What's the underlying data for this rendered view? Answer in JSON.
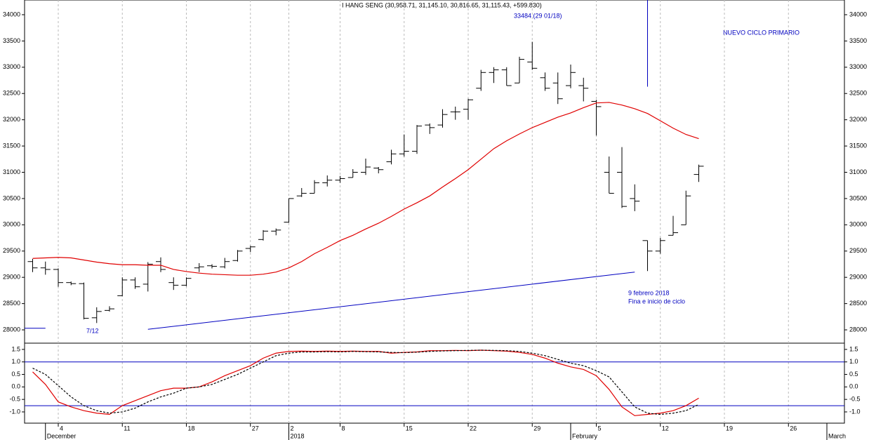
{
  "chart_data": [
    {
      "type": "ohlc",
      "title": "I HANG SENG (30,958.71, 31,145.10, 30,816.65, 31,115.43, +599.830)",
      "categories": [
        null,
        null,
        "4",
        null,
        null,
        null,
        null,
        "11",
        null,
        null,
        null,
        null,
        "18",
        null,
        null,
        null,
        null,
        "27",
        null,
        null,
        "2",
        null,
        null,
        null,
        "8",
        null,
        null,
        null,
        null,
        "15",
        null,
        null,
        null,
        null,
        "22",
        null,
        null,
        null,
        null,
        "29",
        null,
        null,
        null,
        null,
        "5",
        null,
        null,
        null,
        null,
        "12",
        null,
        null,
        null,
        null,
        "19",
        null,
        null,
        null,
        null,
        "26",
        null,
        null,
        null,
        null
      ],
      "month_labels": [
        null,
        "December",
        null,
        null,
        null,
        null,
        null,
        null,
        null,
        null,
        null,
        null,
        null,
        null,
        null,
        null,
        null,
        null,
        null,
        null,
        "2018",
        null,
        null,
        null,
        null,
        null,
        null,
        null,
        null,
        null,
        null,
        null,
        null,
        null,
        null,
        null,
        null,
        null,
        null,
        null,
        null,
        null,
        "February",
        null,
        null,
        null,
        null,
        null,
        null,
        null,
        null,
        null,
        null,
        null,
        null,
        null,
        null,
        null,
        null,
        null,
        null,
        null,
        "March",
        null
      ],
      "series": [
        {
          "color": "#000000",
          "open": [
            29300,
            29180,
            29150,
            28900,
            28880,
            28230,
            28370,
            28650,
            28950,
            28870,
            29300,
            28900,
            28850,
            29180,
            29220,
            29200,
            29320,
            29550,
            29720,
            29880,
            30050,
            30550,
            30600,
            30800,
            30850,
            30900,
            31000,
            31080,
            31200,
            31350,
            31400,
            31900,
            31900,
            32150,
            32200,
            32600,
            32900,
            32950,
            32700,
            33100,
            32800,
            32700,
            32650,
            32650,
            32350,
            31000,
            31000,
            30500,
            29700,
            29500,
            29800,
            30000,
            30958.71,
            null,
            null,
            null,
            null,
            null,
            null,
            null,
            null,
            null,
            null,
            null
          ],
          "high": [
            29350,
            29300,
            29170,
            28920,
            28900,
            28430,
            28450,
            29000,
            29000,
            29290,
            29380,
            29000,
            29000,
            29270,
            29250,
            29370,
            29520,
            29600,
            29900,
            29930,
            30500,
            30700,
            30850,
            30940,
            30930,
            31060,
            31260,
            31100,
            31430,
            31720,
            31900,
            31930,
            32200,
            32250,
            32400,
            32950,
            33000,
            33000,
            33200,
            33484,
            32900,
            32900,
            33050,
            32800,
            32380,
            31300,
            31480,
            30770,
            29700,
            29750,
            30170,
            30650,
            31145.1,
            null,
            null,
            null,
            null,
            null,
            null,
            null,
            null,
            null,
            null,
            null
          ],
          "low": [
            29100,
            29050,
            28820,
            28850,
            28200,
            28130,
            28350,
            28640,
            28780,
            28730,
            29100,
            28760,
            28830,
            29100,
            29170,
            29170,
            29300,
            29480,
            29700,
            29800,
            30040,
            30530,
            30600,
            30730,
            30800,
            30900,
            30950,
            30980,
            31150,
            31300,
            31350,
            31730,
            31850,
            32000,
            32000,
            32550,
            32700,
            32650,
            32700,
            32950,
            32550,
            32300,
            32600,
            32350,
            31700,
            30600,
            30320,
            30260,
            29120,
            29450,
            29800,
            30000,
            30816.65,
            null,
            null,
            null,
            null,
            null,
            null,
            null,
            null,
            null,
            null,
            null
          ],
          "close": [
            29180,
            29150,
            28900,
            28880,
            28220,
            28350,
            28400,
            28950,
            28820,
            29250,
            29150,
            28850,
            28980,
            29200,
            29210,
            29300,
            29500,
            29580,
            29880,
            29900,
            30500,
            30600,
            30800,
            30850,
            30880,
            31000,
            31100,
            31050,
            31350,
            31400,
            31880,
            31850,
            32100,
            32150,
            32380,
            32900,
            32950,
            32650,
            33150,
            32980,
            32600,
            32400,
            32900,
            32600,
            32250,
            30600,
            30350,
            30450,
            29500,
            29700,
            29850,
            30550,
            31115.43,
            null,
            null,
            null,
            null,
            null,
            null,
            null,
            null,
            null,
            null,
            null
          ]
        },
        {
          "color": "#e00000",
          "values": [
            29360,
            29370,
            29380,
            29370,
            29330,
            29290,
            29260,
            29240,
            29240,
            29230,
            29230,
            29150,
            29110,
            29080,
            29060,
            29050,
            29040,
            29040,
            29060,
            29100,
            29180,
            29300,
            29450,
            29570,
            29700,
            29800,
            29920,
            30030,
            30160,
            30300,
            30420,
            30550,
            30720,
            30880,
            31050,
            31250,
            31450,
            31600,
            31730,
            31850,
            31950,
            32050,
            32130,
            32230,
            32320,
            32330,
            32280,
            32210,
            32120,
            31980,
            31840,
            31720,
            31640,
            null,
            null,
            null,
            null,
            null,
            null,
            null,
            null,
            null,
            null,
            null
          ]
        }
      ],
      "ylim": [
        27760,
        34280
      ],
      "yticks": [
        28000,
        28500,
        29000,
        29500,
        30000,
        30500,
        31000,
        31500,
        32000,
        32500,
        33000,
        33500,
        34000
      ],
      "grid": true,
      "line_color": "#0000c0",
      "trendlines": [
        {
          "from": [
            0,
            28030
          ],
          "to": [
            1,
            28030
          ]
        },
        {
          "from": [
            9,
            28010
          ],
          "to": [
            47,
            29100
          ]
        }
      ],
      "verticals": [
        {
          "index": 48,
          "bottom": 32630
        }
      ],
      "annotations": [
        "33484 (29 01/18)",
        "NUEVO CICLO PRIMARIO",
        "7/12",
        "9 febrero 2018",
        "Fina e inicio de ciclo"
      ]
    },
    {
      "type": "line",
      "series": [
        {
          "color": "#e00000",
          "values": [
            0.6,
            0.1,
            -0.6,
            -0.8,
            -0.95,
            -1.05,
            -1.1,
            -0.75,
            -0.55,
            -0.35,
            -0.15,
            -0.05,
            -0.05,
            0.0,
            0.2,
            0.45,
            0.65,
            0.85,
            1.15,
            1.35,
            1.42,
            1.43,
            1.42,
            1.43,
            1.42,
            1.43,
            1.42,
            1.42,
            1.35,
            1.38,
            1.4,
            1.45,
            1.45,
            1.46,
            1.45,
            1.47,
            1.45,
            1.43,
            1.38,
            1.3,
            1.15,
            0.95,
            0.8,
            0.7,
            0.45,
            -0.1,
            -0.8,
            -1.15,
            -1.1,
            -1.05,
            -0.95,
            -0.75,
            -0.45,
            null,
            null,
            null,
            null,
            null,
            null,
            null,
            null,
            null,
            null,
            null
          ]
        },
        {
          "color": "#000000",
          "dash": true,
          "values": [
            0.75,
            0.5,
            0.05,
            -0.4,
            -0.75,
            -0.95,
            -1.05,
            -1.0,
            -0.85,
            -0.6,
            -0.4,
            -0.25,
            -0.05,
            0.0,
            0.1,
            0.3,
            0.5,
            0.75,
            1.0,
            1.25,
            1.35,
            1.4,
            1.4,
            1.41,
            1.4,
            1.42,
            1.41,
            1.4,
            1.38,
            1.37,
            1.39,
            1.42,
            1.44,
            1.45,
            1.46,
            1.47,
            1.46,
            1.45,
            1.42,
            1.35,
            1.25,
            1.1,
            0.95,
            0.85,
            0.65,
            0.4,
            -0.2,
            -0.8,
            -1.05,
            -1.1,
            -1.05,
            -0.95,
            -0.7,
            null,
            null,
            null,
            null,
            null,
            null,
            null,
            null,
            null,
            null,
            null
          ]
        }
      ],
      "ylim": [
        -1.45,
        1.75
      ],
      "yticks": [
        1.5,
        {
          "value": 1,
          "label": "1.0"
        },
        0.5,
        {
          "value": 0,
          "label": "0.0"
        },
        -0.5,
        {
          "value": -1,
          "label": "-1.0"
        }
      ],
      "levels": [
        1,
        -0.75
      ],
      "level_color": "#0000c0"
    }
  ]
}
